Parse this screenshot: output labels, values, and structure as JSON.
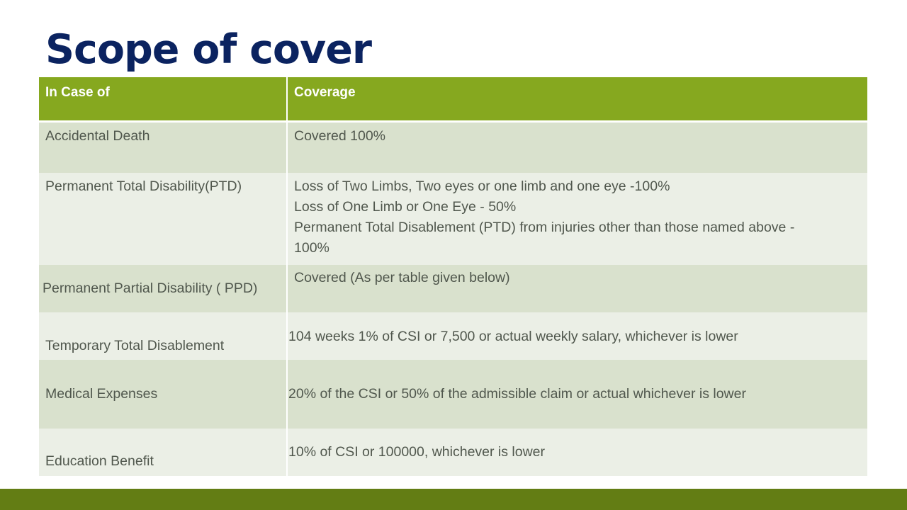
{
  "slide": {
    "title": "Scope of cover"
  },
  "table": {
    "headers": [
      "In Case of",
      "Coverage"
    ],
    "rows": [
      {
        "case": "Accidental Death",
        "coverage": [
          "Covered 100%"
        ]
      },
      {
        "case": "Permanent Total Disability(PTD)",
        "coverage": [
          "Loss of Two Limbs, Two eyes or one limb and one eye -100%",
          "Loss of One Limb or One Eye - 50%",
          "Permanent Total Disablement (PTD) from injuries other than those named above -",
          "100%"
        ]
      },
      {
        "case": "Permanent Partial Disability ( PPD)",
        "coverage": [
          "Covered (As per table given below)"
        ]
      },
      {
        "case": "Temporary Total Disablement",
        "coverage": [
          "104 weeks 1% of CSI or 7,500 or actual weekly salary, whichever is lower"
        ]
      },
      {
        "case": "Medical Expenses",
        "coverage": [
          "20% of the CSI or 50% of the admissible claim or actual whichever is lower"
        ]
      },
      {
        "case": "Education Benefit",
        "coverage": [
          "10% of CSI or 100000, whichever is lower"
        ]
      }
    ]
  },
  "colors": {
    "title": "#0b2360",
    "header_bg": "#86a81f",
    "row_dark": "#d9e1cd",
    "row_light": "#ebefe6",
    "text": "#50574d",
    "bottom_bar": "#637d14"
  }
}
